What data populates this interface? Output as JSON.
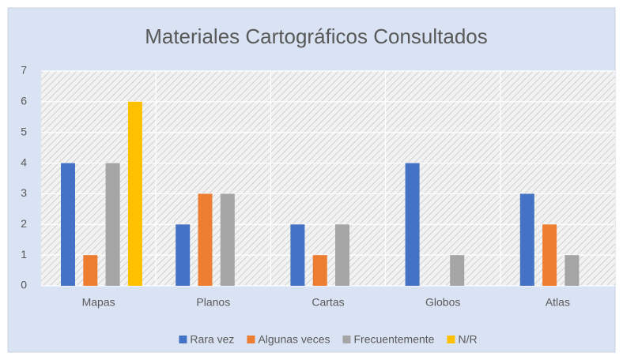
{
  "chart_data": {
    "type": "bar",
    "title": "Materiales Cartográficos Consultados",
    "categories": [
      "Mapas",
      "Planos",
      "Cartas",
      "Globos",
      "Atlas"
    ],
    "series": [
      {
        "name": "Rara vez",
        "color": "#4472c4",
        "values": [
          4,
          2,
          2,
          4,
          3
        ]
      },
      {
        "name": "Algunas veces",
        "color": "#ed7d31",
        "values": [
          1,
          3,
          1,
          0,
          2
        ]
      },
      {
        "name": "Frecuentemente",
        "color": "#a5a5a5",
        "values": [
          4,
          3,
          2,
          1,
          1
        ]
      },
      {
        "name": "N/R",
        "color": "#ffc000",
        "values": [
          6,
          0,
          0,
          0,
          0
        ]
      }
    ],
    "ylim": [
      0,
      7
    ],
    "yticks": [
      0,
      1,
      2,
      3,
      4,
      5,
      6,
      7
    ],
    "grid": true,
    "legend": "bottom"
  }
}
